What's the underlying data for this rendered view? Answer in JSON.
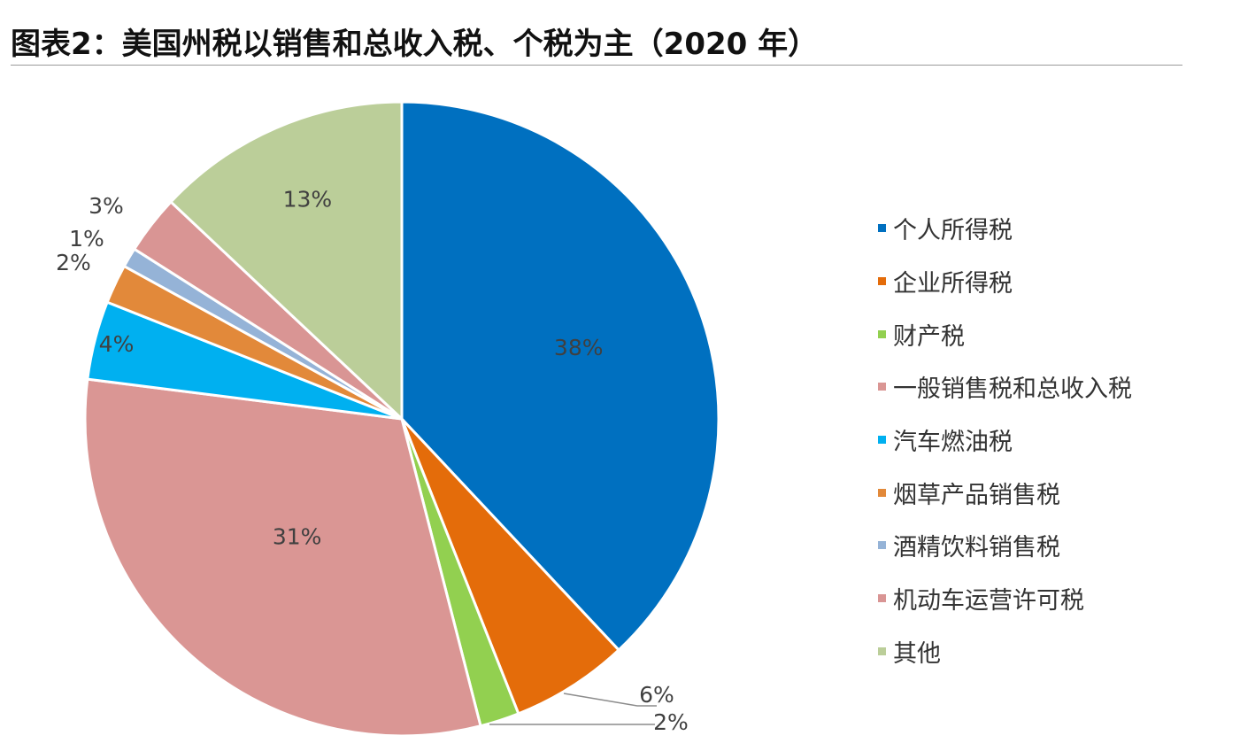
{
  "header": {
    "title": "图表2：美国州税以销售和总收入税、个税为主（2020 年）"
  },
  "chart_data": {
    "type": "pie",
    "title": "图表2：美国州税以销售和总收入税、个税为主（2020 年）",
    "categories": [
      "个人所得税",
      "企业所得税",
      "财产税",
      "一般销售税和总收入税",
      "汽车燃油税",
      "烟草产品销售税",
      "酒精饮料销售税",
      "机动车运营许可税",
      "其他"
    ],
    "values": [
      38,
      6,
      2,
      31,
      4,
      2,
      1,
      3,
      13
    ],
    "labels": [
      "38%",
      "6%",
      "2%",
      "31%",
      "4%",
      "2%",
      "1%",
      "3%",
      "13%"
    ],
    "colors": [
      "#0070C0",
      "#E46C0A",
      "#92D050",
      "#DA9694",
      "#00B0F0",
      "#E2893A",
      "#95B3D7",
      "#D99594",
      "#BBCE99"
    ],
    "start_angle_deg": 0,
    "direction": "clockwise",
    "legend_position": "right"
  }
}
